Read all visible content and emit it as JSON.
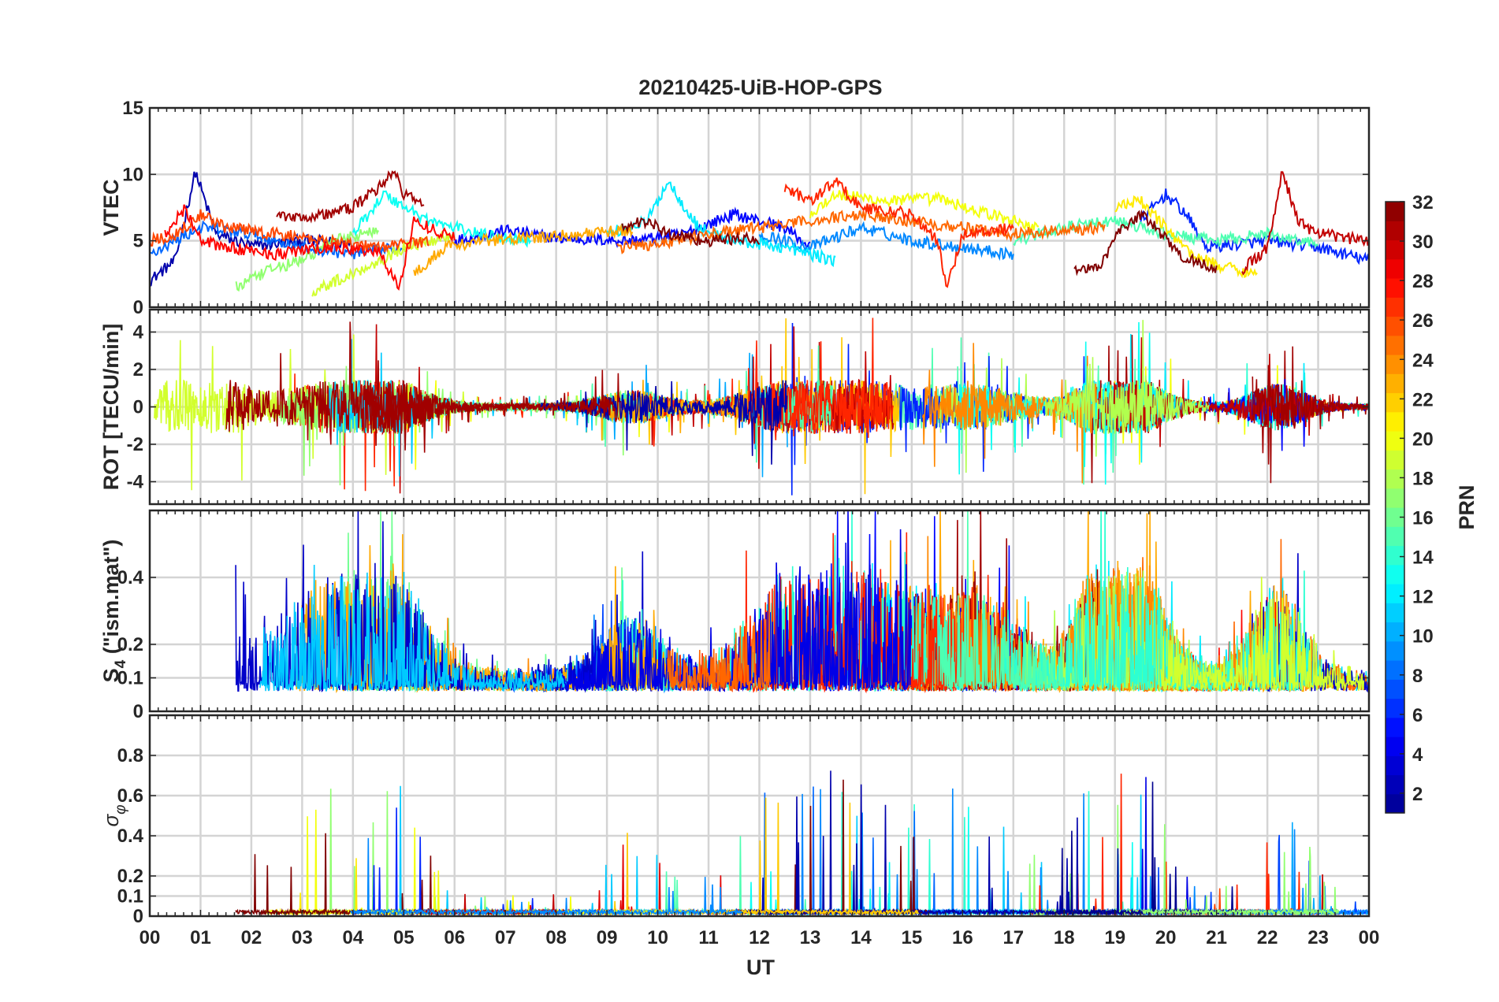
{
  "chart_data": {
    "type": "line",
    "title": "20210425-UiB-HOP-GPS",
    "xlabel": "UT",
    "x_range_hours": [
      0,
      24
    ],
    "x_tick_labels": [
      "00",
      "01",
      "02",
      "03",
      "04",
      "05",
      "06",
      "07",
      "08",
      "09",
      "10",
      "11",
      "12",
      "13",
      "14",
      "15",
      "16",
      "17",
      "18",
      "19",
      "20",
      "21",
      "22",
      "23",
      "00"
    ],
    "grid": true,
    "colorbar": {
      "label": "PRN",
      "range": [
        1,
        32
      ],
      "tick_labels": [
        "2",
        "4",
        "6",
        "8",
        "10",
        "12",
        "14",
        "16",
        "18",
        "20",
        "22",
        "24",
        "26",
        "28",
        "30",
        "32"
      ],
      "colormap": [
        "#00008f",
        "#0000ff",
        "#0080ff",
        "#00ffff",
        "#80ff80",
        "#ffff00",
        "#ff8000",
        "#ff0000",
        "#800000"
      ]
    },
    "panels": [
      {
        "name": "vtec",
        "ylabel": "VTEC",
        "ylim": [
          0,
          15
        ],
        "y_ticks": [
          0,
          5,
          10,
          15
        ],
        "y_tick_labels": [
          "0",
          "5",
          "10",
          "15"
        ],
        "series": [
          {
            "prn": 2,
            "points": [
              [
                0,
                2.0
              ],
              [
                0.5,
                3.5
              ],
              [
                0.9,
                10.2
              ],
              [
                1.3,
                5.5
              ],
              [
                2.0,
                4.6
              ],
              [
                3.0,
                5.0
              ],
              [
                4.0,
                4.8
              ]
            ]
          },
          {
            "prn": 5,
            "points": [
              [
                6,
                5.0
              ],
              [
                7,
                5.8
              ],
              [
                8,
                5.2
              ],
              [
                9.5,
                5.0
              ],
              [
                10.5,
                5.5
              ],
              [
                11.5,
                7.0
              ],
              [
                12.5,
                6.0
              ],
              [
                13,
                4.5
              ]
            ]
          },
          {
            "prn": 6,
            "points": [
              [
                19.5,
                6.5
              ],
              [
                20,
                8.5
              ],
              [
                20.4,
                7.0
              ],
              [
                20.8,
                4.5
              ],
              [
                22,
                5.0
              ],
              [
                23,
                4.5
              ],
              [
                24,
                3.5
              ]
            ]
          },
          {
            "prn": 8,
            "points": [
              [
                0,
                4.0
              ],
              [
                1,
                6.0
              ],
              [
                2,
                5.5
              ],
              [
                3,
                4.5
              ],
              [
                4,
                4.0
              ],
              [
                5,
                4.5
              ]
            ]
          },
          {
            "prn": 9,
            "points": [
              [
                12,
                5.5
              ],
              [
                13,
                4.5
              ],
              [
                14,
                6.0
              ],
              [
                15,
                5.0
              ],
              [
                16,
                4.5
              ],
              [
                17,
                4.0
              ]
            ]
          },
          {
            "prn": 12,
            "points": [
              [
                9,
                5.5
              ],
              [
                9.8,
                6.5
              ],
              [
                10.2,
                9.5
              ],
              [
                10.8,
                6.0
              ],
              [
                11.5,
                5.0
              ],
              [
                12.5,
                4.5
              ],
              [
                13.5,
                3.5
              ]
            ]
          },
          {
            "prn": 13,
            "points": [
              [
                4,
                5.5
              ],
              [
                4.6,
                8.5
              ],
              [
                5.5,
                6.5
              ],
              [
                6.5,
                5.5
              ],
              [
                7.5,
                5.0
              ]
            ]
          },
          {
            "prn": 15,
            "points": [
              [
                17,
                5.0
              ],
              [
                18,
                6.0
              ],
              [
                19,
                6.5
              ],
              [
                20,
                5.5
              ],
              [
                21,
                5.0
              ],
              [
                22,
                5.5
              ],
              [
                23,
                4.8
              ]
            ]
          },
          {
            "prn": 17,
            "points": [
              [
                1.7,
                1.5
              ],
              [
                2.5,
                3.0
              ],
              [
                3.0,
                3.5
              ],
              [
                3.6,
                5.0
              ],
              [
                4.5,
                5.8
              ]
            ]
          },
          {
            "prn": 19,
            "points": [
              [
                3.2,
                1.2
              ],
              [
                4.0,
                2.5
              ],
              [
                5.0,
                4.5
              ],
              [
                6.0,
                5.5
              ]
            ]
          },
          {
            "prn": 20,
            "points": [
              [
                13,
                7.0
              ],
              [
                13.5,
                8.5
              ],
              [
                14.5,
                8.0
              ],
              [
                15.5,
                8.2
              ],
              [
                16.5,
                7.0
              ],
              [
                17.5,
                6.0
              ]
            ]
          },
          {
            "prn": 21,
            "points": [
              [
                19,
                7.5
              ],
              [
                19.5,
                8.0
              ],
              [
                20,
                6.0
              ],
              [
                20.5,
                4.0
              ],
              [
                21,
                3.2
              ],
              [
                21.8,
                2.5
              ]
            ]
          },
          {
            "prn": 23,
            "points": [
              [
                5.2,
                2.5
              ],
              [
                5.8,
                4.5
              ],
              [
                6.5,
                5.0
              ],
              [
                7.5,
                5.2
              ],
              [
                8.5,
                5.5
              ],
              [
                9.5,
                5.8
              ]
            ]
          },
          {
            "prn": 25,
            "points": [
              [
                9.2,
                4.5
              ],
              [
                10,
                4.8
              ],
              [
                11,
                5.5
              ],
              [
                12,
                6.0
              ],
              [
                13,
                6.5
              ],
              [
                14,
                7.0
              ],
              [
                15,
                6.5
              ],
              [
                16,
                6.0
              ],
              [
                17,
                5.5
              ],
              [
                18,
                5.8
              ],
              [
                18.8,
                6.0
              ]
            ]
          },
          {
            "prn": 26,
            "points": [
              [
                0,
                5.0
              ],
              [
                0.5,
                5.5
              ],
              [
                1,
                7.0
              ],
              [
                1.5,
                6.0
              ],
              [
                2.5,
                5.5
              ],
              [
                3.5,
                5.0
              ],
              [
                4.5,
                4.5
              ],
              [
                5.5,
                5.0
              ]
            ]
          },
          {
            "prn": 27,
            "points": [
              [
                12.5,
                9.0
              ],
              [
                13,
                8.0
              ],
              [
                13.5,
                9.5
              ],
              [
                14,
                7.5
              ],
              [
                15,
                7.0
              ],
              [
                15.5,
                5.0
              ],
              [
                15.7,
                1.5
              ],
              [
                16,
                5.5
              ],
              [
                17,
                6.0
              ]
            ]
          },
          {
            "prn": 28,
            "points": [
              [
                0.3,
                5.5
              ],
              [
                0.7,
                7.5
              ],
              [
                1.0,
                5.0
              ],
              [
                1.5,
                4.5
              ],
              [
                2.5,
                4.0
              ],
              [
                3.5,
                4.5
              ],
              [
                4.5,
                4.2
              ],
              [
                4.9,
                1.5
              ],
              [
                5.2,
                6.5
              ],
              [
                6,
                5.2
              ]
            ]
          },
          {
            "prn": 30,
            "points": [
              [
                21.5,
                2.8
              ],
              [
                22,
                4.5
              ],
              [
                22.3,
                10.2
              ],
              [
                22.6,
                6.5
              ],
              [
                23,
                5.5
              ],
              [
                24,
                5.0
              ]
            ]
          },
          {
            "prn": 31,
            "points": [
              [
                2.5,
                7.0
              ],
              [
                3,
                6.8
              ],
              [
                3.5,
                7.0
              ],
              [
                4,
                7.5
              ],
              [
                4.5,
                9.0
              ],
              [
                4.8,
                10.3
              ],
              [
                5.0,
                8.5
              ],
              [
                5.4,
                7.8
              ]
            ]
          },
          {
            "prn": 32,
            "points": [
              [
                9.3,
                6.0
              ],
              [
                9.8,
                6.5
              ],
              [
                10.2,
                5.5
              ],
              [
                11,
                5.0
              ],
              [
                11.8,
                5.2
              ],
              [
                12,
                4.5
              ]
            ]
          },
          {
            "prn": 32,
            "points": [
              [
                18.2,
                3.0
              ],
              [
                18.7,
                2.8
              ],
              [
                19,
                5.5
              ],
              [
                19.5,
                7.0
              ],
              [
                19.8,
                6.0
              ],
              [
                20.3,
                3.8
              ],
              [
                21,
                3.0
              ]
            ]
          }
        ]
      },
      {
        "name": "rot",
        "ylabel": "ROT [TECU/min]",
        "ylim": [
          -5.2,
          5.2
        ],
        "y_ticks": [
          -4,
          -2,
          0,
          2,
          4
        ],
        "y_tick_labels": [
          "-4",
          "-2",
          "0",
          "2",
          "4"
        ]
      },
      {
        "name": "s4",
        "ylabel": "S",
        "ylabel_subscript": "4",
        "ylabel_suffix": " (\"ism.mat\")",
        "ylim": [
          0,
          0.6
        ],
        "y_ticks": [
          0,
          0.1,
          0.2,
          0.4
        ],
        "y_tick_labels": [
          "0",
          "0.1",
          "0.2",
          "0.4"
        ]
      },
      {
        "name": "sigma-phi",
        "ylabel": "σ",
        "ylabel_subscript": "φ",
        "ylim": [
          0,
          1
        ],
        "y_ticks": [
          0,
          0.1,
          0.2,
          0.4,
          0.6,
          0.8
        ],
        "y_tick_labels": [
          "0",
          "0.1",
          "0.2",
          "0.4",
          "0.6",
          "0.8"
        ]
      }
    ]
  }
}
